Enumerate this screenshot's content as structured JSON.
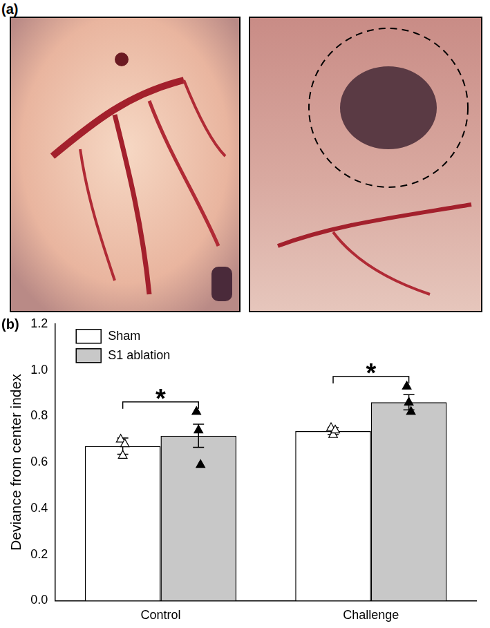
{
  "panel_labels": [
    "(a)",
    "(b)"
  ],
  "chart_data": {
    "type": "bar",
    "y_label": "Deviance from center index",
    "categories": [
      "Control",
      "Challenge"
    ],
    "series": [
      {
        "name": "Sham",
        "color": "#ffffff",
        "values": [
          0.67,
          0.735
        ],
        "errors": [
          0.035,
          0.015
        ],
        "points": [
          [
            0.7,
            0.63,
            0.68
          ],
          [
            0.75,
            0.72,
            0.74
          ]
        ],
        "marker": "triangle-open"
      },
      {
        "name": "S1 ablation",
        "color": "#c8c8c8",
        "values": [
          0.715,
          0.86
        ],
        "errors": [
          0.05,
          0.033
        ],
        "points": [
          [
            0.82,
            0.74,
            0.59
          ],
          [
            0.93,
            0.86,
            0.82
          ]
        ],
        "marker": "triangle"
      }
    ],
    "annotations": [
      {
        "text": "*",
        "category": "Control"
      },
      {
        "text": "*",
        "category": "Challenge"
      }
    ],
    "ylim": [
      0,
      1.2
    ],
    "yticks": [
      {
        "value": 0,
        "label": "0.0"
      },
      0.2,
      0.4,
      0.6,
      0.8,
      {
        "value": 1,
        "label": "1.0"
      },
      1.2
    ],
    "grid": false,
    "legend": "upper left"
  }
}
